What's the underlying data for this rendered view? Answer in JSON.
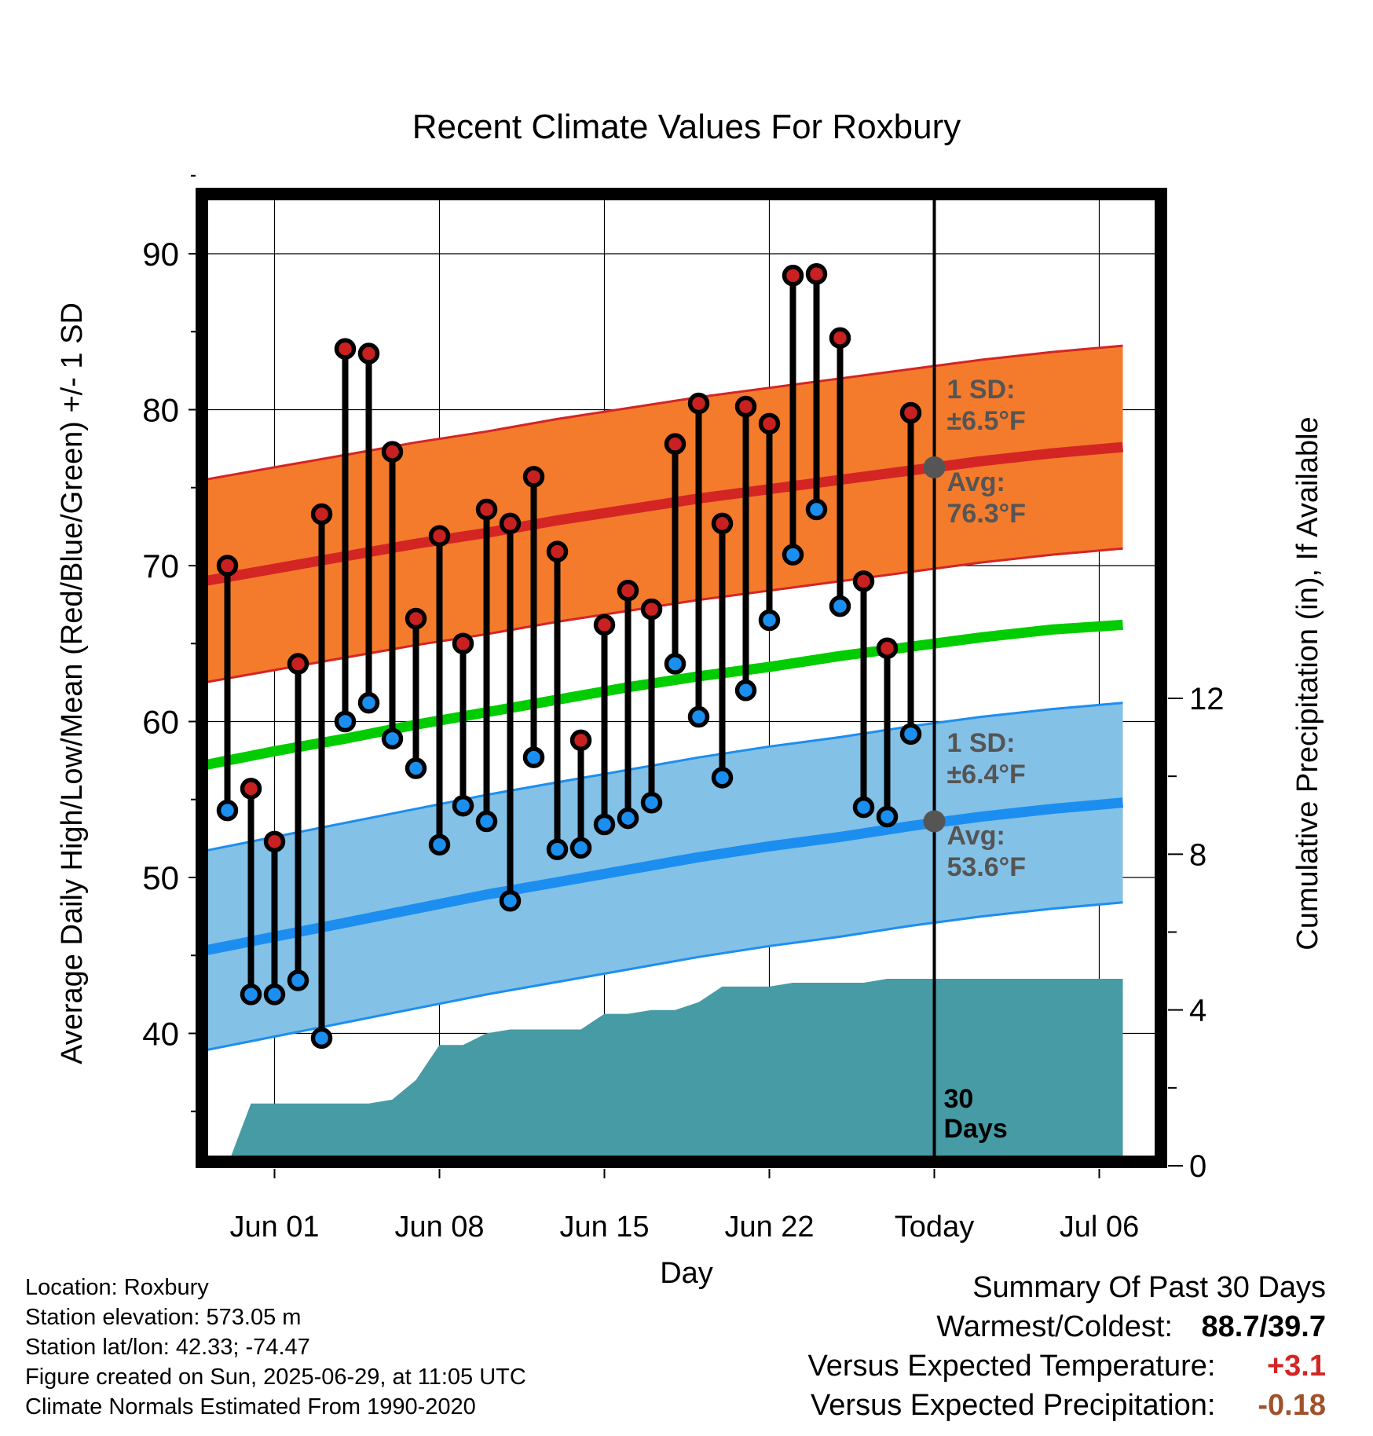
{
  "chart_data": {
    "type": "line",
    "title": "Recent Climate Values For Roxbury",
    "xlabel": "Day",
    "ylabel": "Average Daily High/Low/Mean (Red/Blue/Green) +/- 1 SD",
    "y2label": "Cumulative Precipitation (in), If Available",
    "ylim": [
      32,
      95
    ],
    "y2lim": [
      0,
      24
    ],
    "xlim": [
      -4,
      36
    ],
    "x_ticks": [
      {
        "x": 0,
        "label": "Jun 01"
      },
      {
        "x": 7,
        "label": "Jun 08"
      },
      {
        "x": 14,
        "label": "Jun 15"
      },
      {
        "x": 21,
        "label": "Jun 22"
      },
      {
        "x": 28,
        "label": "Today"
      },
      {
        "x": 35,
        "label": "Jul 06"
      }
    ],
    "y_ticks": [
      "40",
      "50",
      "60",
      "70",
      "80",
      "90"
    ],
    "y2_ticks": [
      "0",
      "4",
      "8",
      "12"
    ],
    "grid": true,
    "today_x": 28,
    "today_label": [
      "30",
      "Days"
    ],
    "daily_high": [
      70.0,
      55.7,
      52.3,
      63.7,
      73.3,
      83.9,
      83.6,
      77.3,
      66.6,
      71.9,
      65.0,
      73.6,
      72.7,
      75.7,
      70.9,
      58.8,
      66.2,
      68.4,
      67.2,
      77.8,
      80.4,
      72.7,
      80.2,
      79.1,
      88.6,
      88.7,
      84.6,
      69.0,
      64.7,
      79.8
    ],
    "daily_low": [
      54.3,
      42.5,
      42.5,
      43.4,
      39.7,
      60.0,
      61.2,
      58.9,
      57.0,
      52.1,
      54.6,
      53.6,
      48.5,
      57.7,
      51.8,
      51.9,
      53.4,
      53.8,
      54.8,
      63.7,
      60.3,
      56.4,
      62.0,
      66.5,
      70.7,
      73.6,
      67.4,
      54.5,
      53.9,
      59.2
    ],
    "normals": {
      "x": [
        -3,
        0,
        3,
        6,
        9,
        12,
        15,
        18,
        21,
        24,
        27,
        30,
        33,
        36
      ],
      "high_avg": [
        69.0,
        69.8,
        70.6,
        71.4,
        72.1,
        72.9,
        73.6,
        74.3,
        74.9,
        75.5,
        76.1,
        76.7,
        77.2,
        77.6
      ],
      "high_sd": 6.5,
      "low_avg": [
        45.3,
        46.2,
        47.1,
        48.0,
        48.9,
        49.7,
        50.5,
        51.3,
        52.0,
        52.6,
        53.3,
        53.9,
        54.4,
        54.8
      ],
      "low_sd": 6.4,
      "mean_avg": [
        57.2,
        58.1,
        58.9,
        59.8,
        60.6,
        61.4,
        62.2,
        62.9,
        63.5,
        64.2,
        64.8,
        65.4,
        65.9,
        66.2
      ]
    },
    "precip_cumulative": {
      "x": [
        -2,
        -1,
        0,
        1,
        2,
        3,
        4,
        5,
        6,
        7,
        8,
        9,
        10,
        11,
        12,
        13,
        14,
        15,
        16,
        17,
        18,
        19,
        20,
        21,
        22,
        23,
        24,
        25,
        26,
        27,
        28,
        29,
        36
      ],
      "values": [
        0.0,
        1.6,
        1.6,
        1.6,
        1.6,
        1.6,
        1.6,
        1.7,
        2.2,
        3.1,
        3.1,
        3.4,
        3.5,
        3.5,
        3.5,
        3.5,
        3.9,
        3.9,
        4.0,
        4.0,
        4.2,
        4.6,
        4.6,
        4.6,
        4.7,
        4.7,
        4.7,
        4.7,
        4.8,
        4.8,
        4.8,
        4.8,
        4.8
      ]
    },
    "annotations": {
      "high_sd_label": [
        "1 SD:",
        "±6.5°F"
      ],
      "high_avg_label": [
        "Avg:",
        "76.3°F"
      ],
      "high_avg_value": 76.3,
      "low_sd_label": [
        "1 SD:",
        "±6.4°F"
      ],
      "low_avg_label": [
        "Avg:",
        "53.6°F"
      ],
      "low_avg_value": 53.6
    },
    "colors": {
      "high_band": "#f47b2c",
      "high_line": "#d42525",
      "low_band": "#84c1e6",
      "low_line": "#1c8ef0",
      "mean_line": "#00cc00",
      "precip": "#479ba5",
      "high_dot": "#c92121",
      "low_dot": "#1a8ff0",
      "annotation": "#555555",
      "avg_dot": "#555555"
    }
  },
  "info": {
    "location": "Location: Roxbury",
    "elevation": "Station elevation: 573.05 m",
    "latlon": "Station lat/lon: 42.33; -74.47",
    "created": "Figure created on Sun, 2025-06-29, at 11:05 UTC",
    "normals": "Climate Normals Estimated From 1990-2020"
  },
  "summary": {
    "title": "Summary Of Past 30 Days",
    "warm_cold_label": "Warmest/Coldest:",
    "warm_cold_value": "88.7/39.7",
    "temp_label": "Versus Expected Temperature:",
    "temp_value": "+3.1",
    "temp_color": "#d42525",
    "precip_label": "Versus Expected Precipitation:",
    "precip_value": "-0.18",
    "precip_color": "#a0522d"
  }
}
